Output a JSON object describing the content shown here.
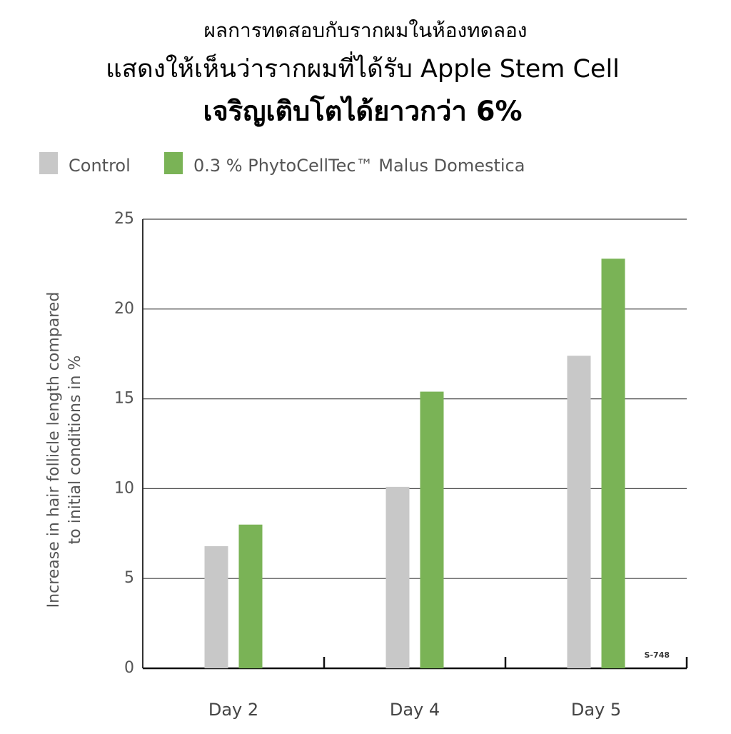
{
  "chart_data": {
    "type": "bar",
    "title": "ผลการทดสอบกับรากผมในห้องทดลอง",
    "subtitle": "แสดงให้เห็นว่ารากผมที่ได้รับ Apple Stem Cell",
    "annotations": [
      "เจริญเติบโตได้ยาวกว่า 6%",
      "S-748"
    ],
    "ylabel": [
      "Increase in hair follicle length compared",
      "to initial conditions in %"
    ],
    "categories": [
      "Day 2",
      "Day 4",
      "Day 5"
    ],
    "series": [
      {
        "name": "Control",
        "color": "#c8c8c8",
        "values": [
          6.8,
          10.1,
          17.4
        ]
      },
      {
        "name": "0.3 % PhytoCellTec™ Malus Domestica",
        "color": "#7ab356",
        "values": [
          8.0,
          15.4,
          22.8
        ]
      }
    ],
    "ylim": [
      0,
      25
    ],
    "yticks": [
      0,
      5,
      10,
      15,
      20,
      25
    ],
    "grid": true
  }
}
